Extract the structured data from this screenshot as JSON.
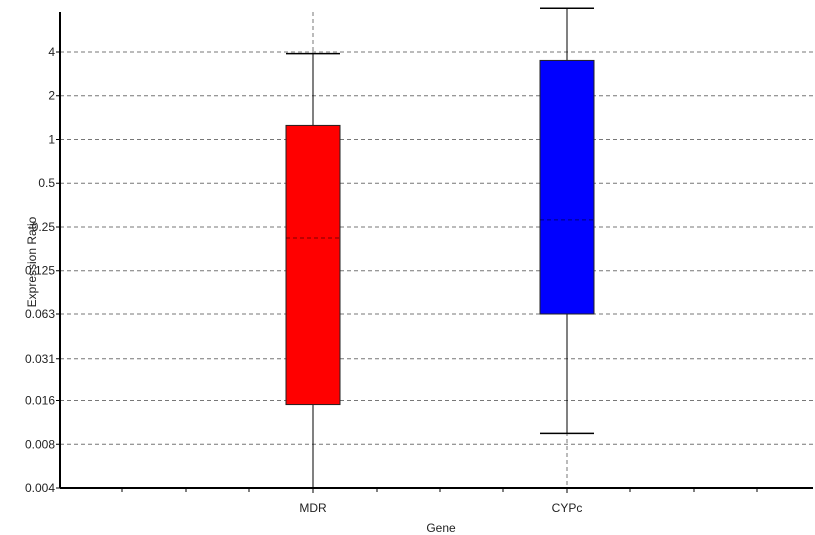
{
  "chart_data": {
    "type": "box",
    "xlabel": "Gene",
    "ylabel": "Expression Ratio",
    "y_scale": "log2",
    "ylim": [
      0.004,
      8
    ],
    "y_ticks": [
      {
        "value": 0.004,
        "label": "0.004"
      },
      {
        "value": 0.008,
        "label": "0.008"
      },
      {
        "value": 0.016,
        "label": "0.016"
      },
      {
        "value": 0.031,
        "label": "0.031"
      },
      {
        "value": 0.063,
        "label": "0.063"
      },
      {
        "value": 0.125,
        "label": "0.125"
      },
      {
        "value": 0.25,
        "label": "0.25"
      },
      {
        "value": 0.5,
        "label": "0.5"
      },
      {
        "value": 1,
        "label": "1"
      },
      {
        "value": 2,
        "label": "2"
      },
      {
        "value": 4,
        "label": "4"
      }
    ],
    "grid": "dashed",
    "categories": [
      "MDR",
      "CYPc"
    ],
    "boxes": [
      {
        "name": "MDR",
        "color": "#ff0000",
        "whisker_low": 0.004,
        "q1": 0.015,
        "median": 0.21,
        "q3": 1.25,
        "whisker_high": 3.9
      },
      {
        "name": "CYPc",
        "color": "#0000ff",
        "whisker_low": 0.0095,
        "q1": 0.063,
        "median": 0.28,
        "q3": 3.5,
        "whisker_high": 8
      }
    ]
  }
}
